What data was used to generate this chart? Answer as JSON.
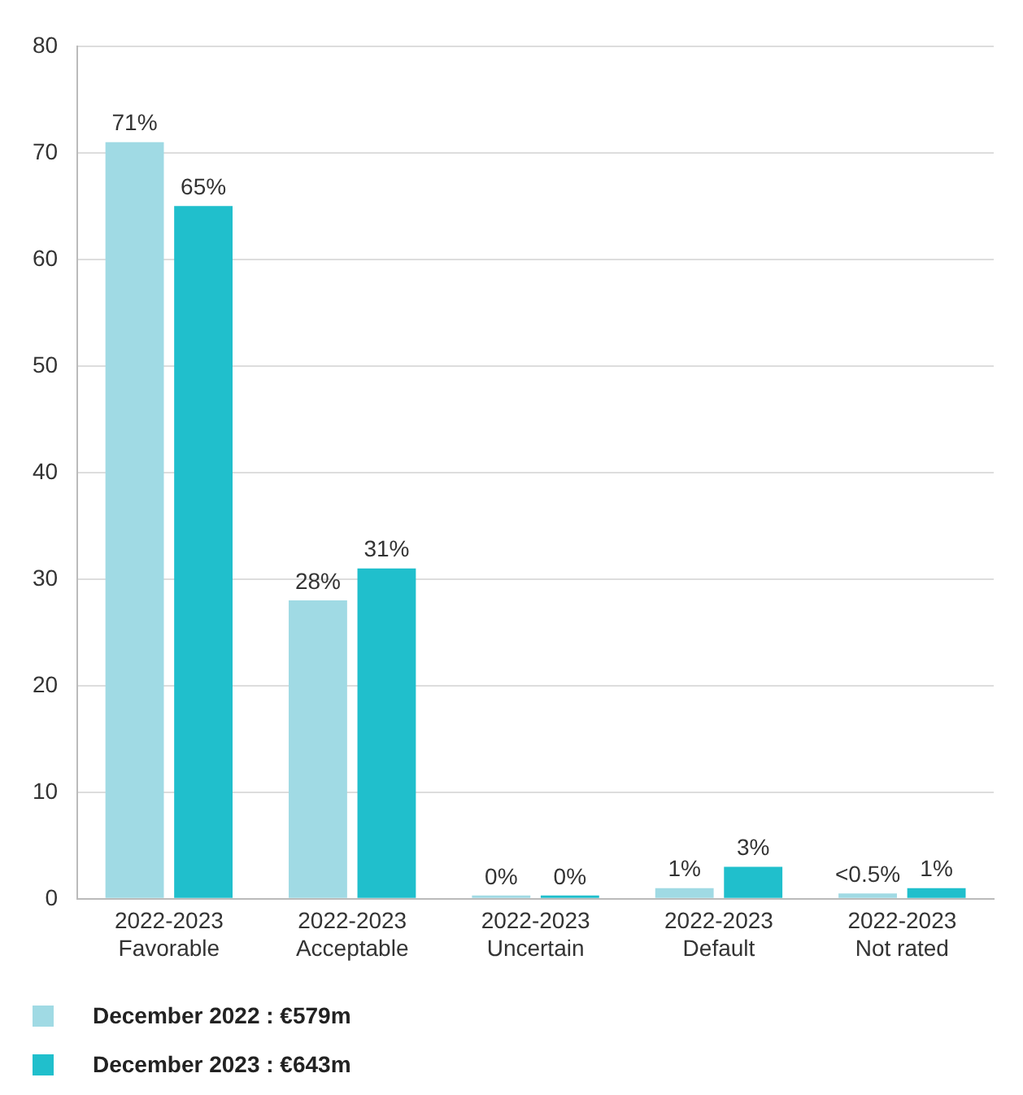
{
  "chart_data": {
    "type": "bar",
    "categories": [
      "2022-2023\nFavorable",
      "2022-2023\nAcceptable",
      "2022-2023\nUncertain",
      "2022-2023\nDefault",
      "2022-2023\nNot rated"
    ],
    "series": [
      {
        "name": "December 2022 : €579m",
        "color": "#a0dae4",
        "values": [
          71,
          28,
          0,
          1,
          0.5
        ],
        "value_labels": [
          "71%",
          "28%",
          "0%",
          "1%",
          "<0.5%"
        ]
      },
      {
        "name": "December 2023 : €643m",
        "color": "#20bfcc",
        "values": [
          65,
          31,
          0,
          3,
          1
        ],
        "value_labels": [
          "65%",
          "31%",
          "0%",
          "3%",
          "1%"
        ]
      }
    ],
    "ylim": [
      0,
      80
    ],
    "yticks": [
      0,
      10,
      20,
      30,
      40,
      50,
      60,
      70,
      80
    ],
    "grid": "y",
    "legend": "bottom"
  }
}
